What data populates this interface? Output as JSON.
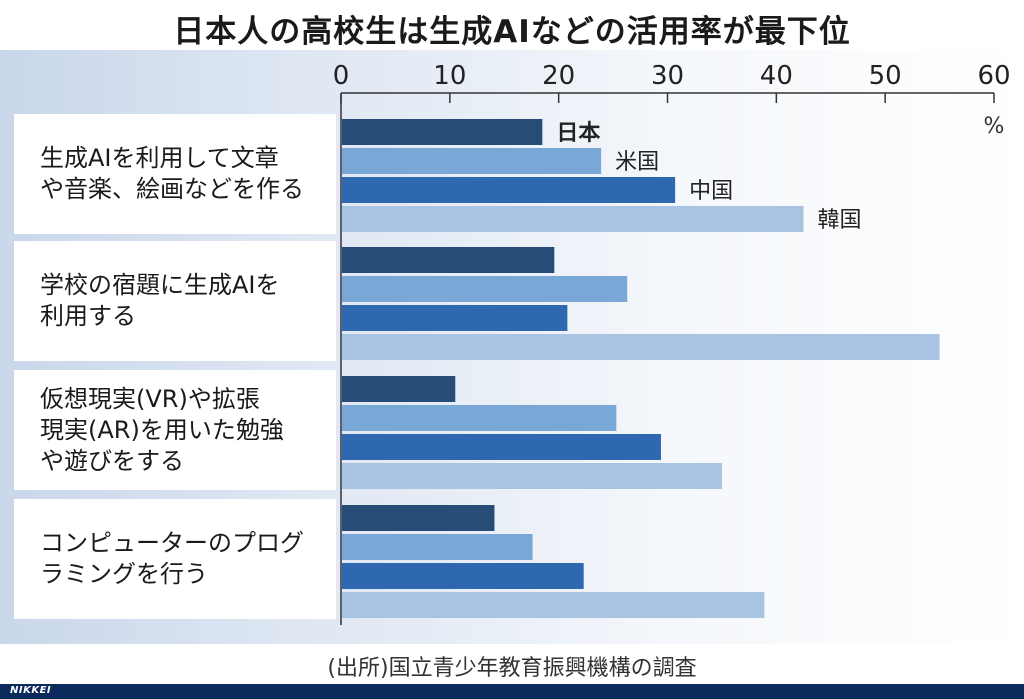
{
  "title": "日本人の高校生は生成AIなどの活用率が最下位",
  "source": "(出所)国立青少年教育振興機構の調査",
  "footer_logo": "NIKKEI",
  "chart_data": {
    "type": "bar",
    "orientation": "horizontal",
    "title": "日本人の高校生は生成AIなどの活用率が最下位",
    "unit": "%",
    "xlim": [
      0,
      60
    ],
    "ticks": [
      "0",
      "10",
      "20",
      "30",
      "40",
      "50",
      "60"
    ],
    "grid": false,
    "categories": [
      "生成AIを利用して文章\nや音楽、絵画などを作る",
      "学校の宿題に生成AIを\n利用する",
      "仮想現実(VR)や拡張\n現実(AR)を用いた勉強\nや遊びをする",
      "コンピューターのプログ\nラミングを行う"
    ],
    "series": [
      {
        "name": "日本",
        "color": "#274c77",
        "values": [
          18.5,
          19.6,
          10.5,
          14.1
        ]
      },
      {
        "name": "米国",
        "color": "#79a7d6",
        "values": [
          23.9,
          26.3,
          25.3,
          17.6
        ]
      },
      {
        "name": "中国",
        "color": "#2e68b0",
        "values": [
          30.7,
          20.8,
          29.4,
          22.3
        ]
      },
      {
        "name": "韓国",
        "color": "#a9c4e2",
        "values": [
          42.5,
          55.0,
          35.0,
          38.9
        ]
      }
    ],
    "legend_placement": "inline labels at end of first group's bars"
  }
}
